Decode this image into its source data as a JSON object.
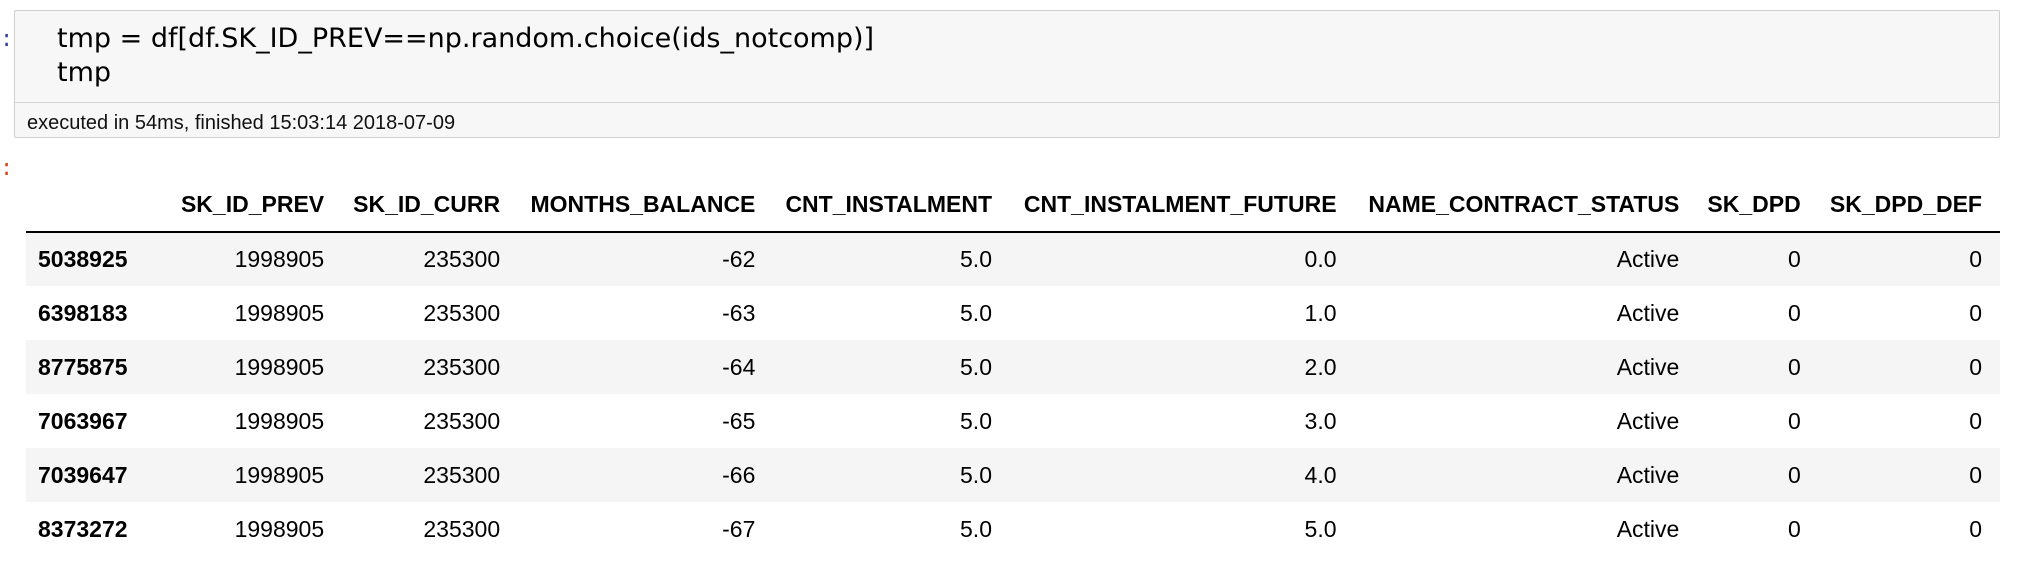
{
  "input_prompt": ":",
  "output_prompt": ":",
  "code": {
    "lines": [
      "tmp = df[df.SK_ID_PREV==np.random.choice(ids_notcomp)]",
      "tmp"
    ]
  },
  "execution_status": "executed in 54ms, finished 15:03:14 2018-07-09",
  "dataframe": {
    "index_header": "",
    "columns": [
      "SK_ID_PREV",
      "SK_ID_CURR",
      "MONTHS_BALANCE",
      "CNT_INSTALMENT",
      "CNT_INSTALMENT_FUTURE",
      "NAME_CONTRACT_STATUS",
      "SK_DPD",
      "SK_DPD_DEF"
    ],
    "rows": [
      {
        "index": "5038925",
        "cells": [
          "1998905",
          "235300",
          "-62",
          "5.0",
          "0.0",
          "Active",
          "0",
          "0"
        ]
      },
      {
        "index": "6398183",
        "cells": [
          "1998905",
          "235300",
          "-63",
          "5.0",
          "1.0",
          "Active",
          "0",
          "0"
        ]
      },
      {
        "index": "8775875",
        "cells": [
          "1998905",
          "235300",
          "-64",
          "5.0",
          "2.0",
          "Active",
          "0",
          "0"
        ]
      },
      {
        "index": "7063967",
        "cells": [
          "1998905",
          "235300",
          "-65",
          "5.0",
          "3.0",
          "Active",
          "0",
          "0"
        ]
      },
      {
        "index": "7039647",
        "cells": [
          "1998905",
          "235300",
          "-66",
          "5.0",
          "4.0",
          "Active",
          "0",
          "0"
        ]
      },
      {
        "index": "8373272",
        "cells": [
          "1998905",
          "235300",
          "-67",
          "5.0",
          "5.0",
          "Active",
          "0",
          "0"
        ]
      }
    ]
  },
  "colors": {
    "input_prompt": "#303f9f",
    "output_prompt": "#d84315",
    "cell_background": "#f7f7f7",
    "cell_border": "#cfcfcf",
    "row_stripe": "#f5f5f5"
  }
}
